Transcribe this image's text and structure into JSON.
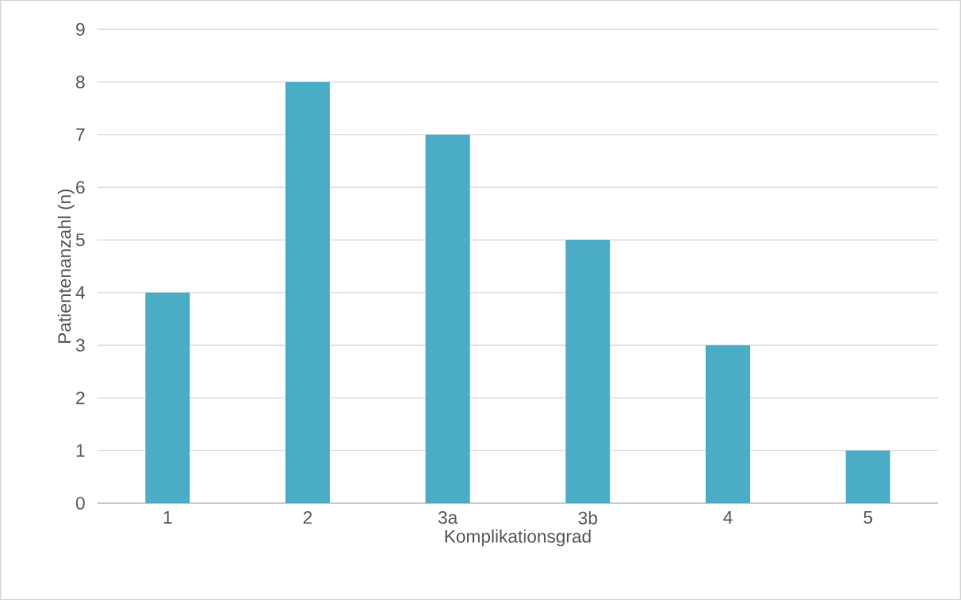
{
  "chart_data": {
    "type": "bar",
    "xlabel": "Komplikationsgrad",
    "ylabel": "Patientenanzahl (n)",
    "categories": [
      "1",
      "2",
      "3a",
      "3b",
      "4",
      "5"
    ],
    "values": [
      4,
      8,
      7,
      5,
      3,
      1
    ],
    "color": "#4bacc6",
    "ylim": [
      0,
      9
    ],
    "yticks": [
      0,
      1,
      2,
      3,
      4,
      5,
      6,
      7,
      8,
      9
    ],
    "grid": "y"
  }
}
